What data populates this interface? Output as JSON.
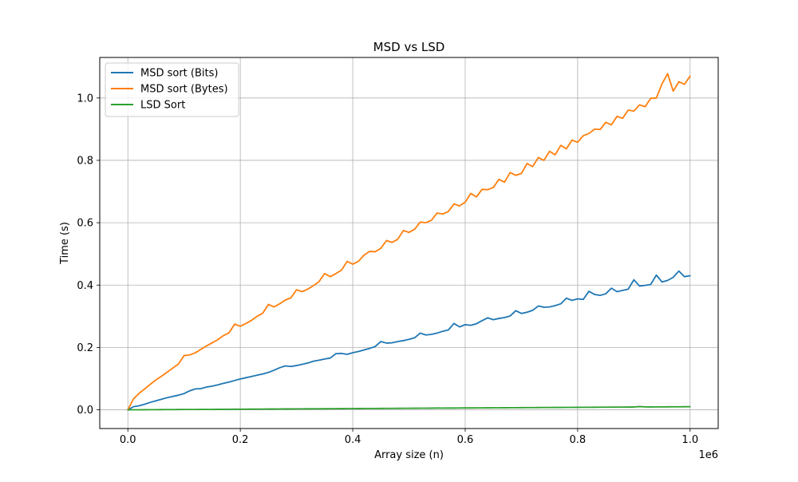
{
  "chart_data": {
    "type": "line",
    "title": "MSD vs LSD",
    "xlabel": "Array size (n)",
    "ylabel": "Time (s)",
    "x_offset_label": "1e6",
    "x_scale": 1000000,
    "xlim": [
      -50000,
      1050000
    ],
    "ylim": [
      -0.06,
      1.13
    ],
    "xticks": [
      0,
      200000,
      400000,
      600000,
      800000,
      1000000
    ],
    "xtick_labels": [
      "0.0",
      "0.2",
      "0.4",
      "0.6",
      "0.8",
      "1.0"
    ],
    "yticks": [
      0.0,
      0.2,
      0.4,
      0.6,
      0.8,
      1.0
    ],
    "ytick_labels": [
      "0.0",
      "0.2",
      "0.4",
      "0.6",
      "0.8",
      "1.0"
    ],
    "grid": true,
    "legend_position": "upper-left",
    "x": [
      0,
      10000,
      20000,
      30000,
      40000,
      50000,
      60000,
      70000,
      80000,
      90000,
      100000,
      110000,
      120000,
      130000,
      140000,
      150000,
      160000,
      170000,
      180000,
      190000,
      200000,
      210000,
      220000,
      230000,
      240000,
      250000,
      260000,
      270000,
      280000,
      290000,
      300000,
      310000,
      320000,
      330000,
      340000,
      350000,
      360000,
      370000,
      380000,
      390000,
      400000,
      410000,
      420000,
      430000,
      440000,
      450000,
      460000,
      470000,
      480000,
      490000,
      500000,
      510000,
      520000,
      530000,
      540000,
      550000,
      560000,
      570000,
      580000,
      590000,
      600000,
      610000,
      620000,
      630000,
      640000,
      650000,
      660000,
      670000,
      680000,
      690000,
      700000,
      710000,
      720000,
      730000,
      740000,
      750000,
      760000,
      770000,
      780000,
      790000,
      800000,
      810000,
      820000,
      830000,
      840000,
      850000,
      860000,
      870000,
      880000,
      890000,
      900000,
      910000,
      920000,
      930000,
      940000,
      950000,
      960000,
      970000,
      980000,
      990000,
      1000000
    ],
    "series": [
      {
        "name": "MSD sort (Bits)",
        "color": "#1f77b4",
        "values": [
          0.0,
          0.01,
          0.013,
          0.018,
          0.024,
          0.029,
          0.034,
          0.039,
          0.043,
          0.047,
          0.052,
          0.061,
          0.067,
          0.068,
          0.073,
          0.076,
          0.08,
          0.085,
          0.089,
          0.094,
          0.099,
          0.103,
          0.107,
          0.111,
          0.115,
          0.12,
          0.127,
          0.135,
          0.141,
          0.139,
          0.142,
          0.146,
          0.15,
          0.156,
          0.159,
          0.163,
          0.166,
          0.18,
          0.181,
          0.178,
          0.183,
          0.187,
          0.192,
          0.197,
          0.203,
          0.219,
          0.214,
          0.215,
          0.219,
          0.222,
          0.226,
          0.231,
          0.246,
          0.24,
          0.242,
          0.246,
          0.252,
          0.256,
          0.277,
          0.266,
          0.273,
          0.271,
          0.276,
          0.286,
          0.295,
          0.289,
          0.293,
          0.296,
          0.301,
          0.318,
          0.309,
          0.313,
          0.319,
          0.333,
          0.329,
          0.33,
          0.334,
          0.34,
          0.358,
          0.351,
          0.356,
          0.354,
          0.38,
          0.37,
          0.367,
          0.372,
          0.39,
          0.379,
          0.383,
          0.387,
          0.417,
          0.397,
          0.399,
          0.402,
          0.432,
          0.41,
          0.415,
          0.425,
          0.445,
          0.427,
          0.43
        ]
      },
      {
        "name": "MSD sort (Bytes)",
        "color": "#ff7f0e",
        "values": [
          0.0,
          0.035,
          0.053,
          0.067,
          0.082,
          0.096,
          0.108,
          0.121,
          0.134,
          0.147,
          0.174,
          0.176,
          0.183,
          0.194,
          0.205,
          0.215,
          0.225,
          0.238,
          0.247,
          0.275,
          0.268,
          0.277,
          0.287,
          0.3,
          0.31,
          0.338,
          0.33,
          0.34,
          0.352,
          0.359,
          0.385,
          0.379,
          0.387,
          0.398,
          0.411,
          0.437,
          0.427,
          0.437,
          0.448,
          0.476,
          0.467,
          0.476,
          0.496,
          0.508,
          0.507,
          0.518,
          0.543,
          0.537,
          0.547,
          0.575,
          0.569,
          0.579,
          0.602,
          0.6,
          0.608,
          0.631,
          0.628,
          0.636,
          0.66,
          0.654,
          0.666,
          0.694,
          0.683,
          0.707,
          0.706,
          0.713,
          0.739,
          0.73,
          0.761,
          0.752,
          0.758,
          0.79,
          0.78,
          0.809,
          0.8,
          0.829,
          0.818,
          0.848,
          0.837,
          0.865,
          0.858,
          0.879,
          0.886,
          0.9,
          0.899,
          0.922,
          0.914,
          0.941,
          0.935,
          0.961,
          0.958,
          0.978,
          0.972,
          0.999,
          1.0,
          1.045,
          1.078,
          1.022,
          1.052,
          1.044,
          1.07
        ]
      },
      {
        "name": "LSD Sort",
        "color": "#2ca02c",
        "values": [
          0.0,
          0.0001,
          0.0002,
          0.0003,
          0.0004,
          0.0005,
          0.0006,
          0.0007,
          0.0008,
          0.0009,
          0.001,
          0.0011,
          0.0012,
          0.0013,
          0.0014,
          0.0015,
          0.0016,
          0.0017,
          0.0018,
          0.0019,
          0.002,
          0.0021,
          0.0022,
          0.0023,
          0.0024,
          0.0025,
          0.0026,
          0.0027,
          0.0028,
          0.0029,
          0.003,
          0.0031,
          0.0032,
          0.0033,
          0.0034,
          0.0035,
          0.0036,
          0.0037,
          0.0038,
          0.0039,
          0.004,
          0.0041,
          0.0042,
          0.0043,
          0.0044,
          0.0045,
          0.0046,
          0.0047,
          0.0048,
          0.0049,
          0.005,
          0.0051,
          0.0052,
          0.0053,
          0.0054,
          0.0058,
          0.0056,
          0.0057,
          0.0058,
          0.0059,
          0.006,
          0.0061,
          0.0062,
          0.0063,
          0.0064,
          0.0065,
          0.0066,
          0.0067,
          0.0068,
          0.0069,
          0.007,
          0.0071,
          0.0072,
          0.0073,
          0.0074,
          0.0075,
          0.0076,
          0.0077,
          0.0078,
          0.0079,
          0.008,
          0.0081,
          0.0082,
          0.0083,
          0.0084,
          0.0085,
          0.0086,
          0.0087,
          0.0088,
          0.0089,
          0.009,
          0.0105,
          0.0095,
          0.0093,
          0.0094,
          0.0095,
          0.0096,
          0.0097,
          0.0098,
          0.0099,
          0.01
        ]
      }
    ]
  }
}
